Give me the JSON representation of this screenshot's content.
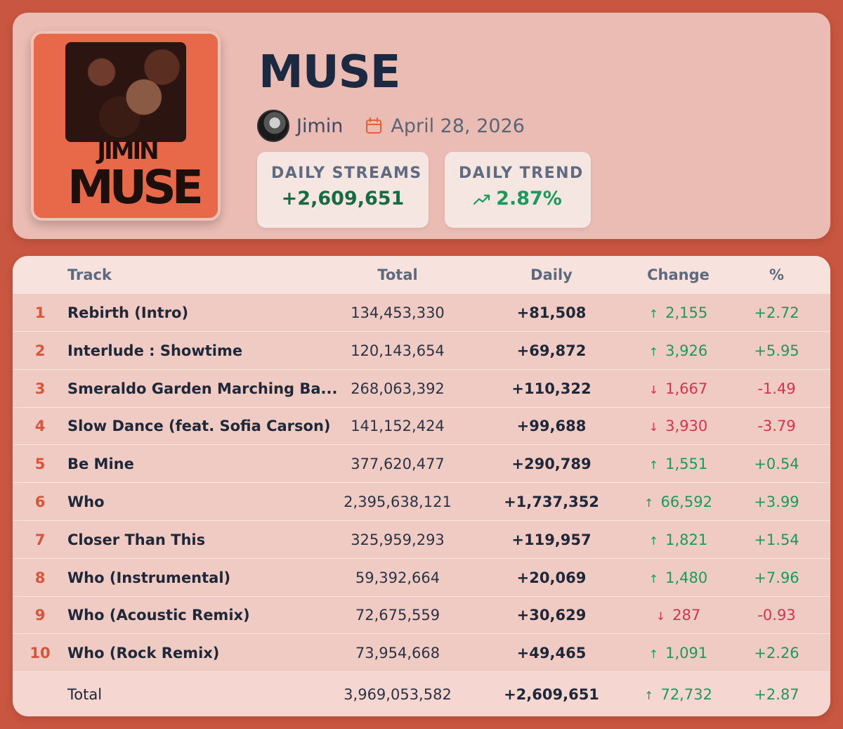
{
  "album": {
    "title": "MUSE",
    "artist": "Jimin",
    "date": "April 28, 2026",
    "cover_logo_line1": "JIMIN",
    "cover_logo_line2": "MUSE"
  },
  "stats": {
    "daily_streams_label": "DAILY STREAMS",
    "daily_streams_value": "+2,609,651",
    "daily_trend_label": "DAILY TREND",
    "daily_trend_value": "2.87%"
  },
  "table": {
    "headers": {
      "track": "Track",
      "total": "Total",
      "daily": "Daily",
      "change": "Change",
      "pct": "%"
    },
    "rows": [
      {
        "num": "1",
        "track": "Rebirth (Intro)",
        "total": "134,453,330",
        "daily": "+81,508",
        "dir": "up",
        "change": "2,155",
        "pct": "+2.72"
      },
      {
        "num": "2",
        "track": "Interlude : Showtime",
        "total": "120,143,654",
        "daily": "+69,872",
        "dir": "up",
        "change": "3,926",
        "pct": "+5.95"
      },
      {
        "num": "3",
        "track": "Smeraldo Garden Marching Ba...",
        "total": "268,063,392",
        "daily": "+110,322",
        "dir": "down",
        "change": "1,667",
        "pct": "-1.49"
      },
      {
        "num": "4",
        "track": "Slow Dance (feat. Sofia Carson)",
        "total": "141,152,424",
        "daily": "+99,688",
        "dir": "down",
        "change": "3,930",
        "pct": "-3.79"
      },
      {
        "num": "5",
        "track": "Be Mine",
        "total": "377,620,477",
        "daily": "+290,789",
        "dir": "up",
        "change": "1,551",
        "pct": "+0.54"
      },
      {
        "num": "6",
        "track": "Who",
        "total": "2,395,638,121",
        "daily": "+1,737,352",
        "dir": "up",
        "change": "66,592",
        "pct": "+3.99"
      },
      {
        "num": "7",
        "track": "Closer Than This",
        "total": "325,959,293",
        "daily": "+119,957",
        "dir": "up",
        "change": "1,821",
        "pct": "+1.54"
      },
      {
        "num": "8",
        "track": "Who (Instrumental)",
        "total": "59,392,664",
        "daily": "+20,069",
        "dir": "up",
        "change": "1,480",
        "pct": "+7.96"
      },
      {
        "num": "9",
        "track": "Who (Acoustic Remix)",
        "total": "72,675,559",
        "daily": "+30,629",
        "dir": "down",
        "change": "287",
        "pct": "-0.93"
      },
      {
        "num": "10",
        "track": "Who (Rock Remix)",
        "total": "73,954,668",
        "daily": "+49,465",
        "dir": "up",
        "change": "1,091",
        "pct": "+2.26"
      }
    ],
    "total_row": {
      "label": "Total",
      "total": "3,969,053,582",
      "daily": "+2,609,651",
      "dir": "up",
      "change": "72,732",
      "pct": "+2.87"
    }
  },
  "colors": {
    "background": "#c95640",
    "up": "#1b9a5e",
    "down": "#d6344b",
    "rank": "#d9553a",
    "title": "#1b2a40"
  },
  "icons": {
    "calendar": "calendar-icon",
    "trend": "trending-up-icon",
    "up": "arrow-up-icon",
    "down": "arrow-down-icon"
  }
}
